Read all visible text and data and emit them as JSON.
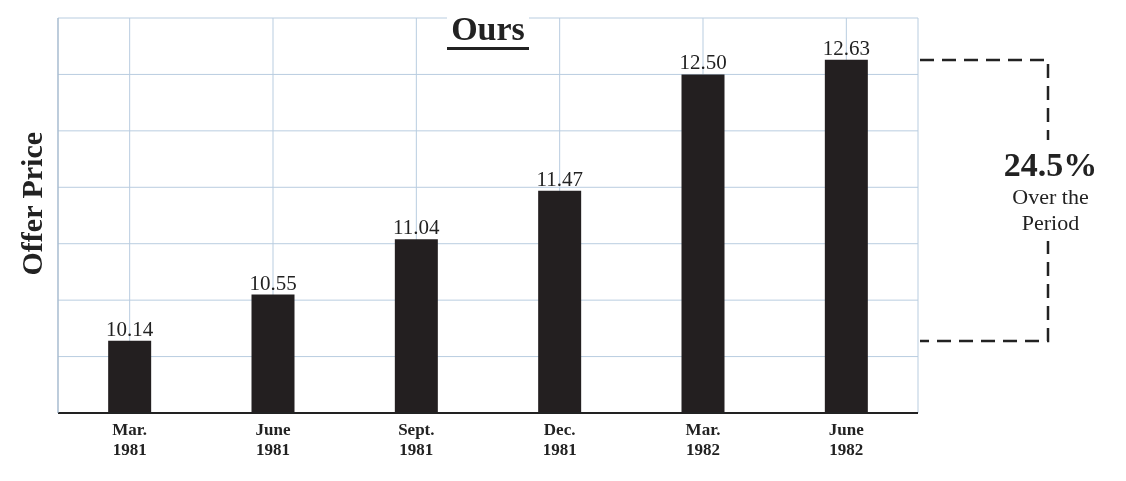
{
  "chart_data": {
    "type": "bar",
    "title": "Ours",
    "ylabel": "Offer Price",
    "categories": [
      "Mar.\n1981",
      "June\n1981",
      "Sept.\n1981",
      "Dec.\n1981",
      "Mar.\n1982",
      "June\n1982"
    ],
    "values": [
      10.14,
      10.55,
      11.04,
      11.47,
      12.5,
      12.63
    ],
    "color": "#231f20",
    "value_labels": [
      "10.14",
      "10.55",
      "11.04",
      "11.47",
      "12.50",
      "12.63"
    ],
    "ylim": [
      9.5,
      13
    ],
    "yticks": [
      {
        "value": 9.5,
        "label": null
      },
      {
        "value": 10,
        "label": null
      },
      {
        "value": 10.5,
        "label": null
      },
      {
        "value": 11,
        "label": null
      },
      {
        "value": 11.5,
        "label": null
      },
      {
        "value": 12,
        "label": null
      },
      {
        "value": 12.5,
        "label": null
      },
      {
        "value": 13,
        "label": null
      }
    ],
    "grid": true,
    "annotations": [
      "24.5%",
      "Over the Period"
    ]
  }
}
